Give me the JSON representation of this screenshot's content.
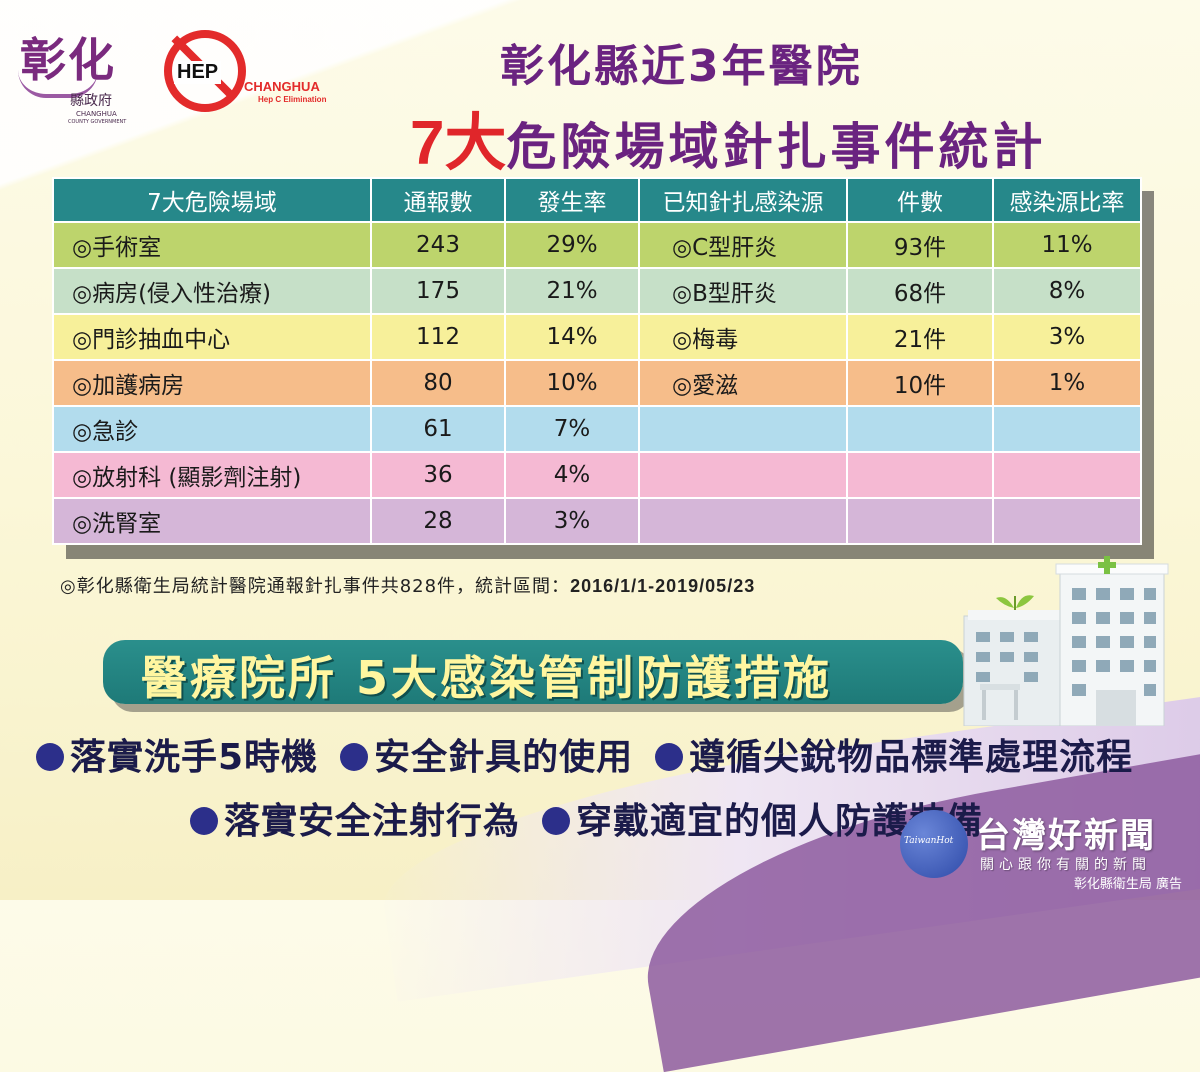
{
  "logos": {
    "gov_big": "彰化",
    "gov_small": "縣政府",
    "gov_eng": "CHANGHUA",
    "gov_eng2": "COUNTY GOVERNMENT",
    "hep_text": "HEP",
    "hep_brand": "CHANGHUA",
    "hep_sub": "Hep C Elimination"
  },
  "title": {
    "line1": "彰化縣近3年醫院",
    "line2_highlight": "7大",
    "line2_rest": "危險場域針扎事件統計"
  },
  "table": {
    "headers": [
      "7大危險場域",
      "通報數",
      "發生率",
      "已知針扎感染源",
      "件數",
      "感染源比率"
    ],
    "row_colors": [
      "#bdd46c",
      "#c6e0c8",
      "#f7f09a",
      "#f6bd8a",
      "#b2dced",
      "#f5b9d3",
      "#d5b6d8"
    ],
    "rows": [
      {
        "site": "◎手術室",
        "reports": "243",
        "rate": "29%",
        "source": "◎C型肝炎",
        "count": "93件",
        "ratio": "11%"
      },
      {
        "site": "◎病房(侵入性治療)",
        "reports": "175",
        "rate": "21%",
        "source": "◎B型肝炎",
        "count": "68件",
        "ratio": "8%"
      },
      {
        "site": "◎門診抽血中心",
        "reports": "112",
        "rate": "14%",
        "source": "◎梅毒",
        "count": "21件",
        "ratio": "3%"
      },
      {
        "site": "◎加護病房",
        "reports": "80",
        "rate": "10%",
        "source": "◎愛滋",
        "count": "10件",
        "ratio": "1%"
      },
      {
        "site": "◎急診",
        "reports": "61",
        "rate": "7%",
        "source": "",
        "count": "",
        "ratio": ""
      },
      {
        "site": "◎放射科 (顯影劑注射)",
        "reports": "36",
        "rate": "4%",
        "source": "",
        "count": "",
        "ratio": ""
      },
      {
        "site": "◎洗腎室",
        "reports": "28",
        "rate": "3%",
        "source": "",
        "count": "",
        "ratio": ""
      }
    ]
  },
  "note": {
    "prefix": "◎彰化縣衛生局統計醫院通報針扎事件共828件，統計區間：",
    "period": "2016/1/1-2019/05/23"
  },
  "banner": "醫療院所 5大感染管制防護措施",
  "measures": {
    "row1": [
      "落實洗手5時機",
      "安全針具的使用",
      "遵循尖銳物品標準處理流程"
    ],
    "row2": [
      "落實安全注射行為",
      "穿戴適宜的個人防護裝備"
    ]
  },
  "watermark": {
    "badge": "TaiwanHot",
    "name": "台灣好新聞",
    "tagline": "關心跟你有關的新聞",
    "credit": "彰化縣衛生局  廣告"
  }
}
